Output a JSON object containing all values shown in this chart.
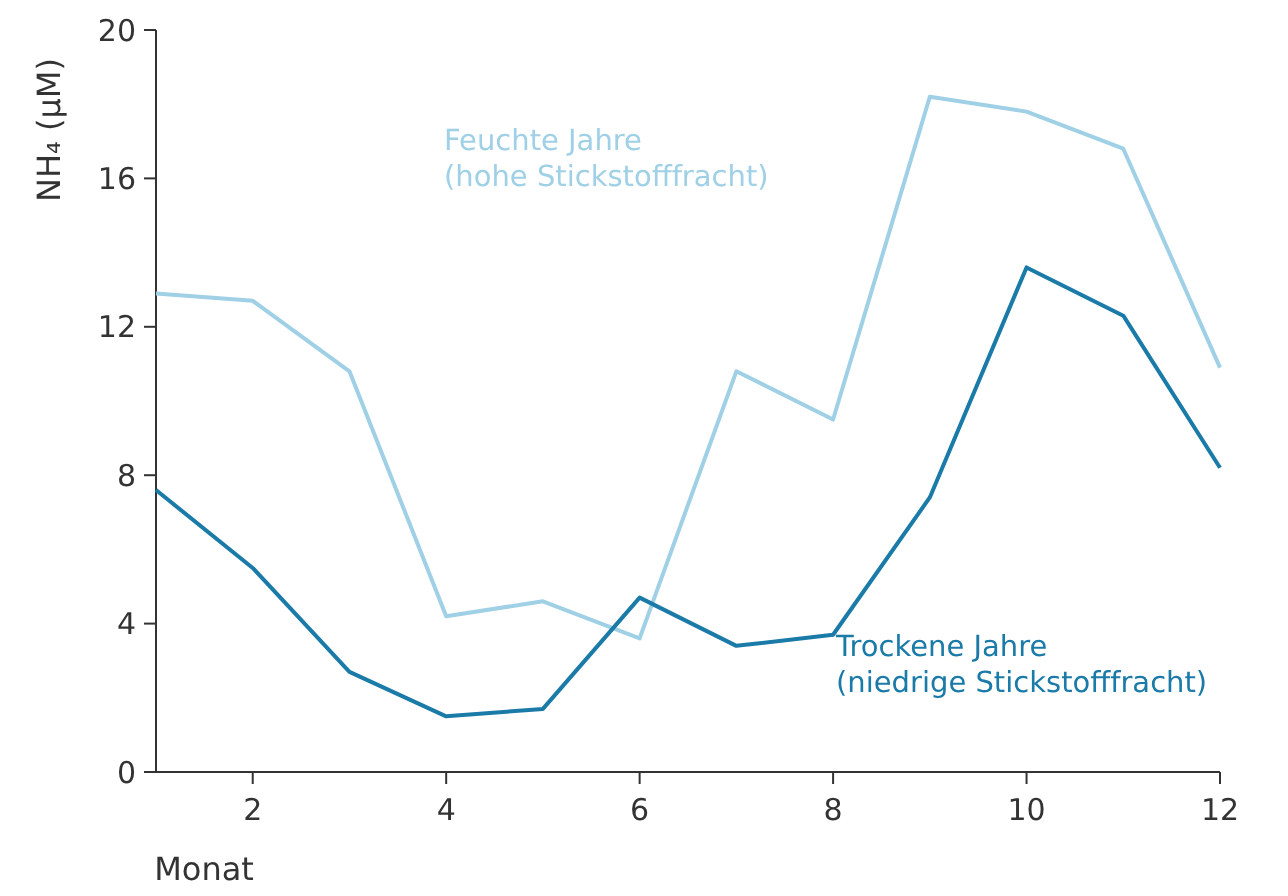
{
  "chart_data": {
    "type": "line",
    "xlabel": "Monat",
    "ylabel": "NH₄ (µM)",
    "x": [
      1,
      2,
      3,
      4,
      5,
      6,
      7,
      8,
      9,
      10,
      11,
      12
    ],
    "xlim": [
      1,
      12
    ],
    "xticks": [
      2,
      4,
      6,
      8,
      10,
      12
    ],
    "ylim": [
      0,
      20
    ],
    "yticks": [
      0,
      4,
      8,
      12,
      16,
      20
    ],
    "grid": false,
    "marker": "none",
    "line_style": "solid",
    "series": [
      {
        "name": "Feuchte Jahre\n(hohe Stickstofffracht)",
        "color": "#9fd0e6",
        "values": [
          12.9,
          12.7,
          10.8,
          4.2,
          4.6,
          3.6,
          10.8,
          9.5,
          18.2,
          17.8,
          16.8,
          10.9
        ]
      },
      {
        "name": "Trockene Jahre\n(niedrige Stickstofffracht)",
        "color": "#1a7aa8",
        "values": [
          7.6,
          5.5,
          2.7,
          1.5,
          1.7,
          4.7,
          3.4,
          3.7,
          7.4,
          13.6,
          12.3,
          8.2
        ]
      }
    ]
  }
}
